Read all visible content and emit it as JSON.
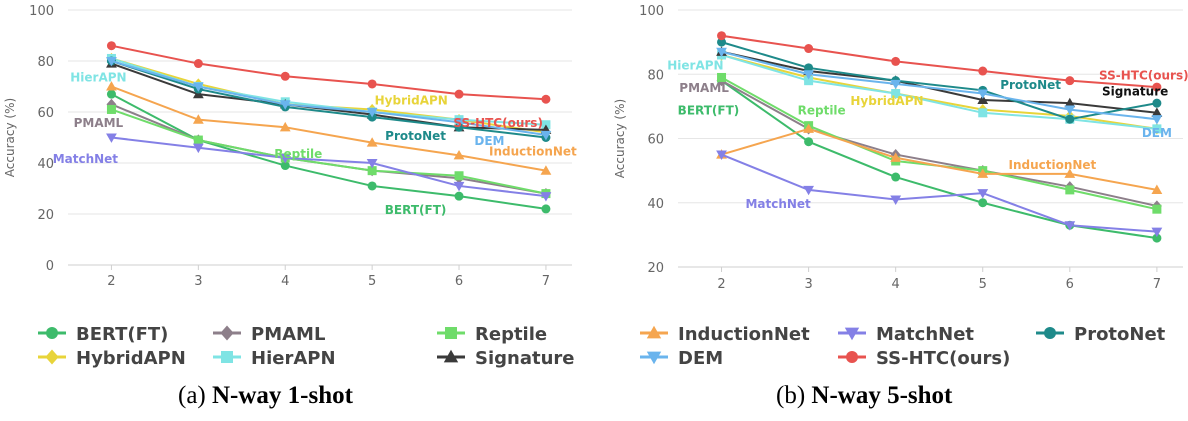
{
  "chart_data": [
    {
      "type": "line",
      "ylabel": "Accuracy (%)",
      "xlabel": "",
      "x": [
        2,
        3,
        4,
        5,
        6,
        7
      ],
      "xticks": [
        "2",
        "3",
        "4",
        "5",
        "6",
        "7"
      ],
      "yticks": [
        "0",
        "20",
        "40",
        "60",
        "80",
        "100"
      ],
      "ylim": [
        0,
        100
      ],
      "grid": "horizontal",
      "legend": "bottom",
      "caption_prefix": "(a) ",
      "caption_bold": "N-way 1-shot",
      "series": [
        {
          "name": "BERT(FT)",
          "color": "#3dbb6b",
          "marker": "circle",
          "values": [
            67,
            49,
            39,
            31,
            27,
            22
          ],
          "label": "BERT(FT)",
          "label_x": 5.5,
          "label_y": 22
        },
        {
          "name": "PMAML",
          "color": "#8d7f8a",
          "marker": "diamond",
          "values": [
            63,
            49,
            42,
            37,
            34,
            28
          ],
          "label": "PMAML",
          "label_x": 1.85,
          "label_y": 56
        },
        {
          "name": "Reptile",
          "color": "#6fdc6a",
          "marker": "square",
          "values": [
            61,
            49,
            42,
            37,
            35,
            28
          ],
          "label": "Reptile",
          "label_x": 4.15,
          "label_y": 44
        },
        {
          "name": "HybridAPN",
          "color": "#e8d43a",
          "marker": "diamond",
          "values": [
            81,
            71,
            63,
            61,
            57,
            52
          ],
          "label": "HybridAPN",
          "label_x": 5.45,
          "label_y": 65
        },
        {
          "name": "HierAPN",
          "color": "#7fe4e4",
          "marker": "square",
          "values": [
            81,
            70,
            64,
            60,
            57,
            55
          ],
          "label": "HierAPN",
          "label_x": 1.85,
          "label_y": 74
        },
        {
          "name": "Signature",
          "color": "#3a3a3a",
          "marker": "triangle-up",
          "values": [
            79,
            67,
            63,
            59,
            54,
            53
          ],
          "label": "",
          "label_x": 0,
          "label_y": 0
        },
        {
          "name": "InductionNet",
          "color": "#f5a54f",
          "marker": "triangle-up",
          "values": [
            70,
            57,
            54,
            48,
            43,
            37
          ],
          "label": "InductionNet",
          "label_x": 6.85,
          "label_y": 45
        },
        {
          "name": "MatchNet",
          "color": "#8480e6",
          "marker": "triangle-down",
          "values": [
            50,
            46,
            42,
            40,
            31,
            27
          ],
          "label": "MatchNet",
          "label_x": 1.7,
          "label_y": 42
        },
        {
          "name": "ProtoNet",
          "color": "#1e8a8a",
          "marker": "circle",
          "values": [
            80,
            69,
            62,
            58,
            54,
            50
          ],
          "label": "ProtoNet",
          "label_x": 5.5,
          "label_y": 51
        },
        {
          "name": "DEM",
          "color": "#6ab4ed",
          "marker": "triangle-down",
          "values": [
            80,
            70,
            63,
            60,
            56,
            51
          ],
          "label": "DEM",
          "label_x": 6.35,
          "label_y": 49
        },
        {
          "name": "SS-HTC(ours)",
          "color": "#e8534f",
          "marker": "circle",
          "values": [
            86,
            79,
            74,
            71,
            67,
            65
          ],
          "label": "SS-HTC(ours)",
          "label_x": 6.45,
          "label_y": 56
        }
      ]
    },
    {
      "type": "line",
      "ylabel": "Accuracy (%)",
      "xlabel": "",
      "x": [
        2,
        3,
        4,
        5,
        6,
        7
      ],
      "xticks": [
        "2",
        "3",
        "4",
        "5",
        "6",
        "7"
      ],
      "yticks": [
        "20",
        "40",
        "60",
        "80",
        "100"
      ],
      "ylim": [
        20,
        100
      ],
      "grid": "horizontal",
      "legend": "bottom",
      "caption_prefix": "(b) ",
      "caption_bold": "N-way 5-shot",
      "series": [
        {
          "name": "BERT(FT)",
          "color": "#3dbb6b",
          "marker": "circle",
          "values": [
            78,
            59,
            48,
            40,
            33,
            29
          ],
          "label": "BERT(FT)",
          "label_x": 1.85,
          "label_y": 69
        },
        {
          "name": "PMAML",
          "color": "#8d7f8a",
          "marker": "diamond",
          "values": [
            78,
            63,
            55,
            50,
            45,
            39
          ],
          "label": "PMAML",
          "label_x": 1.8,
          "label_y": 76
        },
        {
          "name": "Reptile",
          "color": "#6fdc6a",
          "marker": "square",
          "values": [
            79,
            64,
            53,
            50,
            44,
            38
          ],
          "label": "Reptile",
          "label_x": 3.15,
          "label_y": 69
        },
        {
          "name": "HybridAPN",
          "color": "#e8d43a",
          "marker": "diamond",
          "values": [
            86,
            79,
            74,
            69,
            67,
            63
          ],
          "label": "HybridAPN",
          "label_x": 3.9,
          "label_y": 72
        },
        {
          "name": "HierAPN",
          "color": "#7fe4e4",
          "marker": "square",
          "values": [
            86,
            78,
            74,
            68,
            66,
            63
          ],
          "label": "HierAPN",
          "label_x": 1.7,
          "label_y": 83
        },
        {
          "name": "Signature",
          "color": "#3a3a3a",
          "marker": "triangle-up",
          "values": [
            87,
            81,
            78,
            72,
            71,
            68
          ],
          "label": "Signature",
          "label_x": 6.75,
          "label_y": 75
        },
        {
          "name": "InductionNet",
          "color": "#f5a54f",
          "marker": "triangle-up",
          "values": [
            55,
            63,
            54,
            49,
            49,
            44
          ],
          "label": "InductionNet",
          "label_x": 5.8,
          "label_y": 52
        },
        {
          "name": "MatchNet",
          "color": "#8480e6",
          "marker": "triangle-down",
          "values": [
            55,
            44,
            41,
            43,
            33,
            31
          ],
          "label": "MatchNet",
          "label_x": 2.65,
          "label_y": 40
        },
        {
          "name": "ProtoNet",
          "color": "#1e8a8a",
          "marker": "circle",
          "values": [
            90,
            82,
            78,
            75,
            66,
            71
          ],
          "label": "ProtoNet",
          "label_x": 5.55,
          "label_y": 77
        },
        {
          "name": "DEM",
          "color": "#6ab4ed",
          "marker": "triangle-down",
          "values": [
            87,
            80,
            77,
            74,
            69,
            66
          ],
          "label": "DEM",
          "label_x": 7.0,
          "label_y": 62
        },
        {
          "name": "SS-HTC(ours)",
          "color": "#e8534f",
          "marker": "circle",
          "values": [
            92,
            88,
            84,
            81,
            78,
            76
          ],
          "label": "SS-HTC(ours)",
          "label_x": 6.85,
          "label_y": 80
        }
      ]
    }
  ],
  "legend": [
    {
      "name": "BERT(FT)",
      "color": "#3dbb6b",
      "marker": "circle"
    },
    {
      "name": "PMAML",
      "color": "#8d7f8a",
      "marker": "diamond"
    },
    {
      "name": "Reptile",
      "color": "#6fdc6a",
      "marker": "square"
    },
    {
      "name": "HybridAPN",
      "color": "#e8d43a",
      "marker": "diamond"
    },
    {
      "name": "HierAPN",
      "color": "#7fe4e4",
      "marker": "square"
    },
    {
      "name": "Signature",
      "color": "#3a3a3a",
      "marker": "triangle-up"
    },
    {
      "name": "InductionNet",
      "color": "#f5a54f",
      "marker": "triangle-up"
    },
    {
      "name": "MatchNet",
      "color": "#8480e6",
      "marker": "triangle-down"
    },
    {
      "name": "ProtoNet",
      "color": "#1e8a8a",
      "marker": "circle"
    },
    {
      "name": "DEM",
      "color": "#6ab4ed",
      "marker": "triangle-down"
    },
    {
      "name": "SS-HTC(ours)",
      "color": "#e8534f",
      "marker": "circle"
    }
  ]
}
